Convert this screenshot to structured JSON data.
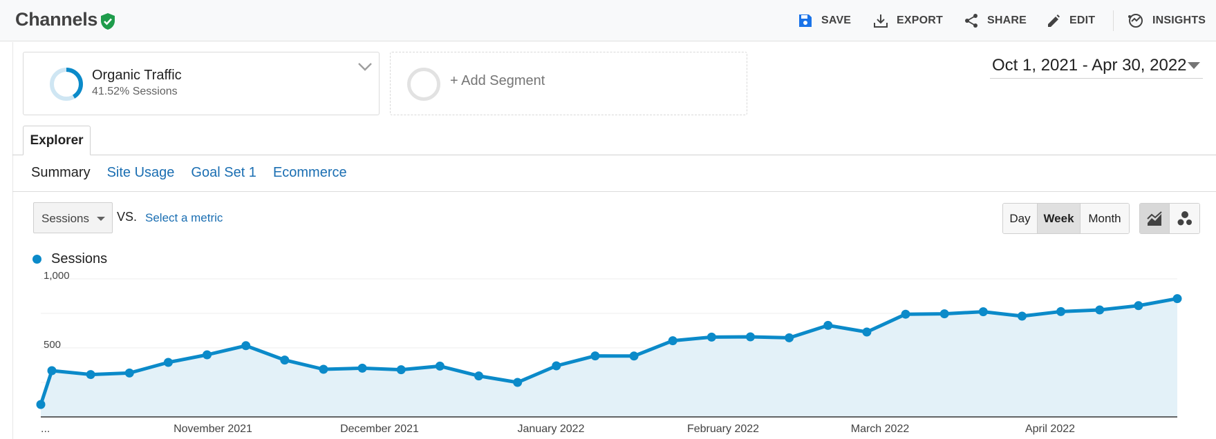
{
  "header": {
    "title": "Channels",
    "actions": {
      "save": "SAVE",
      "export": "EXPORT",
      "share": "SHARE",
      "edit": "EDIT",
      "insights": "INSIGHTS"
    }
  },
  "segments": {
    "primary": {
      "name": "Organic Traffic",
      "subtitle": "41.52% Sessions",
      "share_fraction": 0.4152
    },
    "add_label": "+ Add Segment"
  },
  "date_range": "Oct 1, 2021 - Apr 30, 2022",
  "tabs": {
    "explorer": "Explorer"
  },
  "subtabs": [
    "Summary",
    "Site Usage",
    "Goal Set 1",
    "Ecommerce"
  ],
  "controls": {
    "metric": "Sessions",
    "vs": "VS.",
    "select_metric": "Select a metric",
    "granularity": [
      "Day",
      "Week",
      "Month"
    ],
    "granularity_active": "Week"
  },
  "colors": {
    "series": "#0b8ac9",
    "area": "#e3f1f8",
    "accent_green": "#1e9c4b",
    "link": "#1a6eb2"
  },
  "icons": {
    "verified": "shield-check-icon",
    "save": "floppy-disk-icon",
    "export": "download-icon",
    "share": "share-icon",
    "edit": "pencil-icon",
    "insights": "insights-icon",
    "line_chart": "line-chart-icon",
    "motion_chart": "bubble-chart-icon"
  },
  "chart_data": {
    "type": "area",
    "series": [
      {
        "name": "Sessions",
        "values": [
          90,
          335,
          307,
          318,
          395,
          450,
          516,
          412,
          345,
          353,
          342,
          368,
          297,
          250,
          370,
          442,
          441,
          552,
          578,
          580,
          573,
          663,
          615,
          744,
          747,
          762,
          730,
          763,
          775,
          806,
          857
        ]
      }
    ],
    "x_tick_labels": [
      "...",
      "November 2021",
      "December 2021",
      "January 2022",
      "February 2022",
      "March 2022",
      "April 2022"
    ],
    "y_tick_labels": [
      "1,000",
      "500"
    ],
    "ylim": [
      0,
      1000
    ],
    "grid": true,
    "legend": "top-left"
  }
}
